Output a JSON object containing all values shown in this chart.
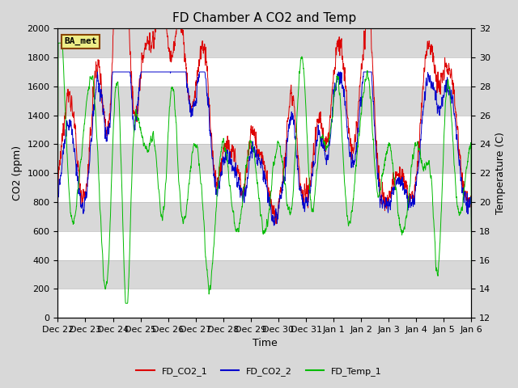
{
  "title": "FD Chamber A CO2 and Temp",
  "xlabel": "Time",
  "ylabel_left": "CO2 (ppm)",
  "ylabel_right": "Temperature (C)",
  "ylim_left": [
    0,
    2000
  ],
  "ylim_right": [
    12,
    32
  ],
  "bg_color": "#d8d8d8",
  "band_color": "#ffffff",
  "series": {
    "FD_CO2_1": {
      "color": "#dd0000",
      "label": "FD_CO2_1"
    },
    "FD_CO2_2": {
      "color": "#0000cc",
      "label": "FD_CO2_2"
    },
    "FD_Temp_1": {
      "color": "#00bb00",
      "label": "FD_Temp_1"
    }
  },
  "annotation": {
    "text": "BA_met",
    "bg_color": "#eeee88",
    "border_color": "#884400",
    "fontsize": 8
  },
  "xtick_labels": [
    "Dec 22",
    "Dec 23",
    "Dec 24",
    "Dec 25",
    "Dec 26",
    "Dec 27",
    "Dec 28",
    "Dec 29",
    "Dec 30",
    "Dec 31",
    "Jan 1",
    "Jan 2",
    "Jan 3",
    "Jan 4",
    "Jan 5",
    "Jan 6"
  ],
  "title_fontsize": 11,
  "axis_label_fontsize": 9,
  "tick_fontsize": 8,
  "legend_fontsize": 8,
  "figsize": [
    6.4,
    4.8
  ],
  "dpi": 100
}
